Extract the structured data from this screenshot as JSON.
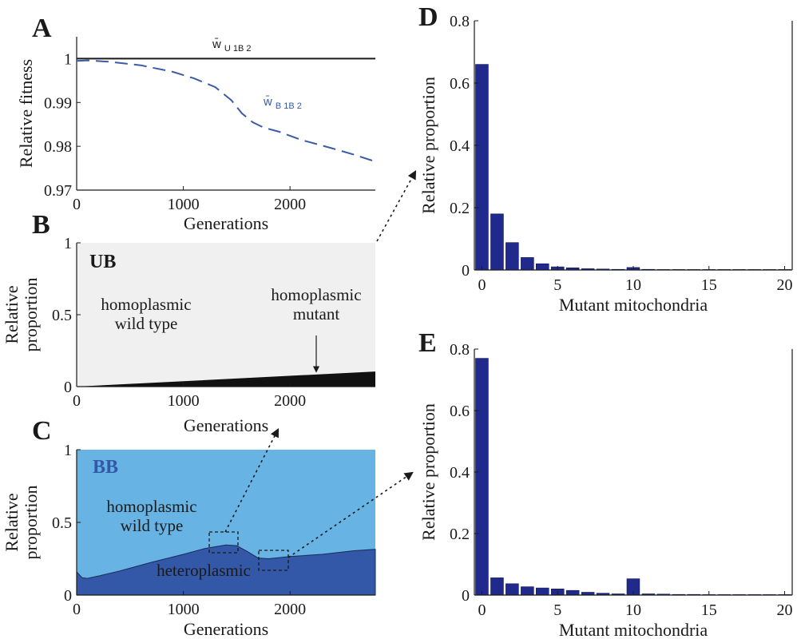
{
  "panel_letters": [
    "A",
    "B",
    "C",
    "D",
    "E"
  ],
  "colors": {
    "black": "#1a1a1a",
    "dash_blue": "#3b5ba5",
    "light_gray": "#f0f0f0",
    "light_blue": "#67b3e3",
    "dark_blue": "#3358a8",
    "bb_label": "#3358a8",
    "bar": "#1f2a8c"
  },
  "chart_data": [
    {
      "id": "A",
      "type": "line",
      "ylabel": "Relative fitness",
      "xlabel": "Generations",
      "xlim": [
        0,
        2800
      ],
      "ylim": [
        0.97,
        1.005
      ],
      "xticks": [
        "0",
        "1000",
        "2000"
      ],
      "xtick_values": [
        0,
        1000,
        2000
      ],
      "yticks": [
        "0.97",
        "0.98",
        "0.99",
        "1"
      ],
      "ytick_values": [
        0.97,
        0.98,
        0.99,
        1.0
      ],
      "series": [
        {
          "name": "w̄ U1B2",
          "label_main": "w̄",
          "label_sub": "U 1B 2",
          "style": "solid",
          "x": [
            0,
            2800
          ],
          "y": [
            1.0,
            1.0
          ]
        },
        {
          "name": "w̄ B1B2",
          "label_main": "w̄",
          "label_sub": "B 1B 2",
          "style": "dashed",
          "x": [
            0,
            100,
            300,
            600,
            900,
            1100,
            1300,
            1450,
            1550,
            1650,
            1750,
            1900,
            2100,
            2400,
            2600,
            2800
          ],
          "y": [
            0.9995,
            0.9996,
            0.9993,
            0.9985,
            0.997,
            0.9955,
            0.9935,
            0.9905,
            0.9875,
            0.9855,
            0.9843,
            0.9833,
            0.9815,
            0.9795,
            0.9781,
            0.9765
          ]
        }
      ]
    },
    {
      "id": "B",
      "type": "area",
      "ylabel": "Relative\nproportion",
      "ylabel_lines": [
        "Relative",
        "proportion"
      ],
      "xlabel": "Generations",
      "xlim": [
        0,
        2800
      ],
      "ylim": [
        0,
        1
      ],
      "xticks": [
        "0",
        "1000",
        "2000"
      ],
      "xtick_values": [
        0,
        1000,
        2000
      ],
      "yticks": [
        "0",
        "0.5",
        "1"
      ],
      "ytick_values": [
        0,
        0.5,
        1
      ],
      "tag": "UB",
      "areas": [
        {
          "name": "homoplasmic mutant",
          "x": [
            0,
            2800
          ],
          "y": [
            0.0,
            0.105
          ]
        },
        {
          "name": "homoplasmic wild type",
          "x": [
            0,
            2800
          ],
          "y": [
            1.0,
            1.0
          ]
        }
      ],
      "annotations": {
        "wild_type": [
          "homoplasmic",
          "wild type"
        ],
        "mutant": [
          "homoplasmic",
          "mutant"
        ]
      }
    },
    {
      "id": "C",
      "type": "area",
      "ylabel": "Relative\nproportion",
      "ylabel_lines": [
        "Relative",
        "proportion"
      ],
      "xlabel": "Generations",
      "xlim": [
        0,
        2800
      ],
      "ylim": [
        0,
        1
      ],
      "xticks": [
        "0",
        "1000",
        "2000"
      ],
      "xtick_values": [
        0,
        1000,
        2000
      ],
      "yticks": [
        "0",
        "0.5",
        "1"
      ],
      "ytick_values": [
        0,
        0.5,
        1
      ],
      "tag": "BB",
      "areas": [
        {
          "name": "heteroplasmic",
          "x": [
            0,
            50,
            100,
            200,
            400,
            700,
            1000,
            1200,
            1400,
            1500,
            1600,
            1700,
            1800,
            2000,
            2300,
            2600,
            2800
          ],
          "y": [
            0.16,
            0.12,
            0.115,
            0.13,
            0.165,
            0.225,
            0.28,
            0.32,
            0.345,
            0.34,
            0.3,
            0.255,
            0.25,
            0.265,
            0.28,
            0.305,
            0.315
          ]
        },
        {
          "name": "homoplasmic wild type",
          "x": [
            0,
            2800
          ],
          "y": [
            1.0,
            1.0
          ]
        }
      ],
      "annotations": {
        "wild_type": [
          "homoplasmic",
          "wild type"
        ],
        "heteroplasmic": "heteroplasmic"
      }
    },
    {
      "id": "D",
      "type": "bar",
      "ylabel": "Relative proportion",
      "xlabel": "Mutant mitochondria",
      "xlim": [
        -0.5,
        20.5
      ],
      "ylim": [
        0,
        0.8
      ],
      "xticks": [
        "0",
        "5",
        "10",
        "15",
        "20"
      ],
      "xtick_values": [
        0,
        5,
        10,
        15,
        20
      ],
      "yticks": [
        "0",
        "0.2",
        "0.4",
        "0.6",
        "0.8"
      ],
      "ytick_values": [
        0,
        0.2,
        0.4,
        0.6,
        0.8
      ],
      "categories": [
        0,
        1,
        2,
        3,
        4,
        5,
        6,
        7,
        8,
        9,
        10,
        11,
        12,
        13,
        14,
        15,
        16,
        17,
        18,
        19,
        20
      ],
      "values": [
        0.66,
        0.18,
        0.088,
        0.04,
        0.02,
        0.01,
        0.007,
        0.004,
        0.003,
        0.002,
        0.008,
        0.002,
        0.001,
        0.001,
        0.0005,
        0.0005,
        0.0003,
        0.0003,
        0.0002,
        0.0002,
        0.0001
      ]
    },
    {
      "id": "E",
      "type": "bar",
      "ylabel": "Relative proportion",
      "xlabel": "Mutant mitochondria",
      "xlim": [
        -0.5,
        20.5
      ],
      "ylim": [
        0,
        0.8
      ],
      "xticks": [
        "0",
        "5",
        "10",
        "15",
        "20"
      ],
      "xtick_values": [
        0,
        5,
        10,
        15,
        20
      ],
      "yticks": [
        "0",
        "0.2",
        "0.4",
        "0.6",
        "0.8"
      ],
      "ytick_values": [
        0,
        0.2,
        0.4,
        0.6,
        0.8
      ],
      "categories": [
        0,
        1,
        2,
        3,
        4,
        5,
        6,
        7,
        8,
        9,
        10,
        11,
        12,
        13,
        14,
        15,
        16,
        17,
        18,
        19,
        20
      ],
      "values": [
        0.77,
        0.056,
        0.037,
        0.027,
        0.023,
        0.02,
        0.015,
        0.009,
        0.006,
        0.004,
        0.053,
        0.004,
        0.003,
        0.002,
        0.002,
        0.001,
        0.001,
        0.001,
        0.0005,
        0.0005,
        0.0003
      ]
    }
  ]
}
